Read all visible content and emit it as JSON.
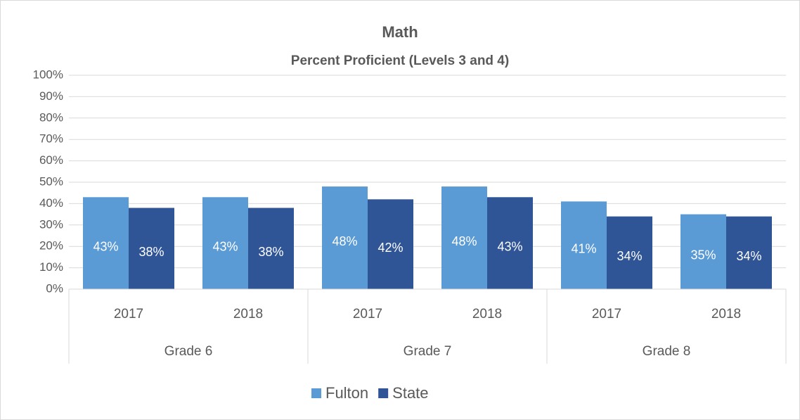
{
  "chart_data": {
    "type": "bar",
    "title": "Math",
    "subtitle": "Percent Proficient (Levels 3 and 4)",
    "categories": [
      "2017",
      "2018",
      "2017",
      "2018",
      "2017",
      "2018"
    ],
    "groups": [
      "Grade 6",
      "Grade 7",
      "Grade 8"
    ],
    "series": [
      {
        "name": "Fulton",
        "color": "#5b9bd5",
        "values": [
          43,
          43,
          48,
          48,
          41,
          35
        ],
        "value_labels": [
          "43%",
          "43%",
          "48%",
          "48%",
          "41%",
          "35%"
        ]
      },
      {
        "name": "State",
        "color": "#2f5597",
        "values": [
          38,
          38,
          42,
          43,
          34,
          34
        ],
        "value_labels": [
          "38%",
          "38%",
          "42%",
          "43%",
          "34%",
          "34%"
        ]
      }
    ],
    "ylim": [
      0,
      100
    ],
    "yticks": [
      {
        "value": 0,
        "label": "0%"
      },
      {
        "value": 10,
        "label": "10%"
      },
      {
        "value": 20,
        "label": "20%"
      },
      {
        "value": 30,
        "label": "30%"
      },
      {
        "value": 40,
        "label": "40%"
      },
      {
        "value": 50,
        "label": "50%"
      },
      {
        "value": 60,
        "label": "60%"
      },
      {
        "value": 70,
        "label": "70%"
      },
      {
        "value": 80,
        "label": "80%"
      },
      {
        "value": 90,
        "label": "90%"
      },
      {
        "value": 100,
        "label": "100%"
      }
    ],
    "grid": true,
    "legend": "bottom"
  }
}
